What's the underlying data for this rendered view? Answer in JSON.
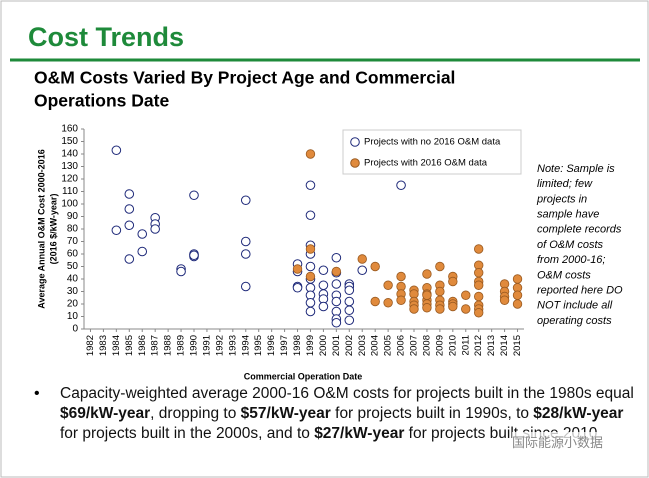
{
  "header": {
    "title": "Cost Trends"
  },
  "chart_data": {
    "type": "scatter",
    "title": [
      "O&M Costs Varied By Project Age and Commercial",
      "Operations Date"
    ],
    "y_label": [
      "Average Annual O&M Cost 2000-2016",
      "(2016 $/kW-year)"
    ],
    "x_label": "Commercial Operation Date",
    "xlim": [
      1981.5,
      2015.5
    ],
    "ylim": [
      0,
      160
    ],
    "xticks": [
      1982,
      1983,
      1984,
      1985,
      1986,
      1987,
      1988,
      1989,
      1990,
      1991,
      1992,
      1993,
      1994,
      1995,
      1996,
      1997,
      1998,
      1999,
      2000,
      2001,
      2002,
      2003,
      2004,
      2005,
      2006,
      2007,
      2008,
      2009,
      2010,
      2011,
      2012,
      2013,
      2014,
      2015
    ],
    "yticks": [
      0,
      10,
      20,
      30,
      40,
      50,
      60,
      70,
      80,
      90,
      100,
      110,
      120,
      130,
      140,
      150,
      160
    ],
    "legend": "top-right",
    "series": [
      {
        "name": "Projects with no 2016 O&M data",
        "color": "#1f2a7a",
        "filled": false,
        "x": [
          1984,
          1984,
          1985,
          1985,
          1985,
          1985,
          1986,
          1986,
          1987,
          1987,
          1987,
          1989,
          1989,
          1990,
          1990,
          1990,
          1990,
          1994,
          1994,
          1994,
          1994,
          1998,
          1998,
          1998,
          1998,
          1999,
          1999,
          1999,
          1999,
          1999,
          1999,
          1999,
          1999,
          1999,
          1999,
          2000,
          2000,
          2000,
          2000,
          2000,
          2001,
          2001,
          2001,
          2001,
          2001,
          2001,
          2001,
          2001,
          2002,
          2002,
          2002,
          2002,
          2002,
          2002,
          2003,
          2006
        ],
        "values": [
          143,
          79,
          108,
          96,
          83,
          56,
          76,
          62,
          89,
          84,
          80,
          48,
          46,
          107,
          60,
          58,
          59,
          103,
          70,
          60,
          34,
          52,
          46,
          34,
          33,
          115,
          91,
          67,
          60,
          50,
          40,
          33,
          27,
          21,
          14,
          47,
          35,
          28,
          24,
          18,
          57,
          45,
          36,
          27,
          22,
          14,
          8,
          5,
          36,
          34,
          31,
          22,
          15,
          7,
          47,
          115
        ]
      },
      {
        "name": "Projects with 2016 O&M data",
        "color": "#e08a3c",
        "filled": true,
        "x": [
          1998,
          1999,
          1999,
          1999,
          2001,
          2003,
          2004,
          2004,
          2005,
          2005,
          2006,
          2006,
          2006,
          2006,
          2007,
          2007,
          2007,
          2007,
          2007,
          2008,
          2008,
          2008,
          2008,
          2008,
          2008,
          2008,
          2009,
          2009,
          2009,
          2009,
          2009,
          2009,
          2010,
          2010,
          2010,
          2010,
          2010,
          2011,
          2011,
          2012,
          2012,
          2012,
          2012,
          2012,
          2012,
          2012,
          2012,
          2012,
          2014,
          2014,
          2014,
          2014,
          2015,
          2015,
          2015,
          2015
        ],
        "values": [
          48,
          140,
          64,
          42,
          46,
          56,
          50,
          22,
          35,
          21,
          42,
          34,
          28,
          23,
          31,
          28,
          22,
          19,
          16,
          44,
          33,
          28,
          23,
          20,
          17,
          27,
          50,
          35,
          30,
          23,
          19,
          16,
          42,
          38,
          22,
          20,
          18,
          27,
          16,
          64,
          51,
          45,
          38,
          35,
          26,
          19,
          16,
          13,
          36,
          30,
          26,
          23,
          40,
          33,
          27,
          20
        ]
      }
    ],
    "note": [
      "Note: Sample is",
      "limited; few",
      "projects in",
      "sample have",
      "complete records",
      "of O&M costs",
      "from 2000-16;",
      "O&M costs",
      "reported here DO",
      "NOT include all",
      "operating costs"
    ]
  },
  "bullet": [
    {
      "text": "Capacity-weighted average 2000-16 O&M costs for projects built in the 1980s equal ",
      "bold": false
    },
    {
      "text": "$69/kW-year",
      "bold": true
    },
    {
      "text": ", dropping to ",
      "bold": false
    },
    {
      "text": "$57/kW-year",
      "bold": true
    },
    {
      "text": " for projects built in 1990s, to ",
      "bold": false
    },
    {
      "text": "$28/kW-year",
      "bold": true
    },
    {
      "text": " for projects built in the 2000s, and to ",
      "bold": false
    },
    {
      "text": "$27/kW-year",
      "bold": true
    },
    {
      "text": " for projects built since 2010",
      "bold": false
    }
  ],
  "watermark": "国际能源小数据"
}
